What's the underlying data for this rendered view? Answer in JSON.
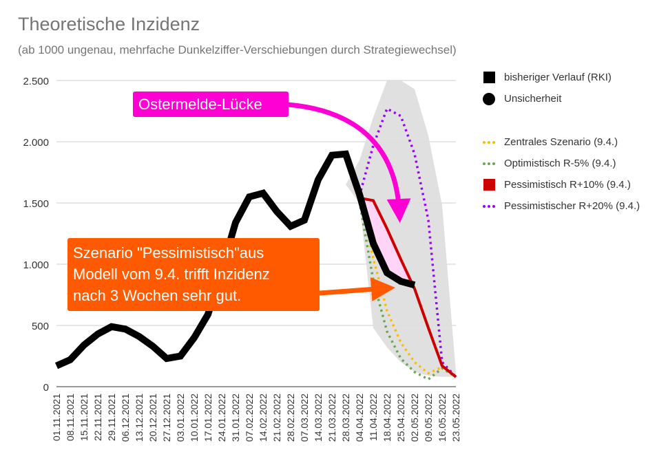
{
  "title": "Theoretische Inzidenz",
  "subtitle": "(ab 1000 ungenau, mehrfache Dunkelziffer-Verschiebungen durch Strategiewechsel)",
  "annotations": {
    "ostermelde": "Ostermelde-Lücke",
    "szenario": "Szenario \"Pessimistisch\"aus\nModell vom 9.4. trifft Inzidenz\nnach 3 Wochen sehr gut."
  },
  "colors": {
    "rki": "#000000",
    "zentral": "#f9bc00",
    "optimistisch": "#6aa84f",
    "pessimistisch10": "#cc0000",
    "pessimistisch20": "#9900ff",
    "band": "#dddddd",
    "pink": "#ff00d4",
    "pink_fill": "#ffd4f7",
    "orange": "#ff5a00",
    "grid": "#cccccc",
    "text": "#333333"
  },
  "legend": [
    {
      "label": "bisheriger Verlauf (RKI)",
      "marker": "square",
      "color": "#000000"
    },
    {
      "label": "Unsicherheit",
      "marker": "circle",
      "color": "#000000"
    },
    {
      "label": "",
      "marker": "none",
      "color": ""
    },
    {
      "label": "Zentrales Szenario (9.4.)",
      "marker": "dotted",
      "color": "#f9bc00"
    },
    {
      "label": "Optimistisch R-5% (9.4.)",
      "marker": "dotted",
      "color": "#6aa84f"
    },
    {
      "label": "Pessimistisch R+10% (9.4.)",
      "marker": "square",
      "color": "#cc0000"
    },
    {
      "label": "Pessimistischer R+20% (9.4.)",
      "marker": "dotted",
      "color": "#9900ff"
    }
  ],
  "chart_data": {
    "type": "line",
    "title": "Theoretische Inzidenz",
    "subtitle": "(ab 1000 ungenau, mehrfache Dunkelziffer-Verschiebungen durch Strategiewechsel)",
    "ylim": [
      0,
      2500
    ],
    "yticks": [
      0,
      500,
      1000,
      1500,
      2000,
      2500
    ],
    "ytick_labels": [
      "0",
      "500",
      "1.000",
      "1.500",
      "2.000",
      "2.500"
    ],
    "grid": true,
    "legend_position": "right",
    "categories": [
      "01.11.2021",
      "08.11.2021",
      "15.11.2021",
      "22.11.2021",
      "29.11.2021",
      "06.12.2021",
      "13.12.2021",
      "20.12.2021",
      "27.12.2021",
      "03.01.2022",
      "10.01.2022",
      "17.01.2022",
      "24.01.2022",
      "31.01.2022",
      "07.02.2022",
      "14.02.2022",
      "21.02.2022",
      "28.02.2022",
      "07.03.2022",
      "14.03.2022",
      "21.03.2022",
      "28.03.2022",
      "04.04.2022",
      "11.04.2022",
      "18.04.2022",
      "25.04.2022",
      "02.05.2022",
      "09.05.2022",
      "16.05.2022",
      "23.05.2022"
    ],
    "series": [
      {
        "name": "bisheriger Verlauf (RKI)",
        "style": "solid-thick",
        "values": [
          170,
          220,
          340,
          430,
          490,
          470,
          410,
          330,
          230,
          250,
          400,
          590,
          950,
          1340,
          1550,
          1580,
          1430,
          1310,
          1360,
          1690,
          1890,
          1900,
          1570,
          1170,
          930,
          860,
          830,
          null,
          null,
          null
        ]
      },
      {
        "name": "Unsicherheit",
        "style": "band",
        "upper": [
          null,
          null,
          null,
          null,
          null,
          null,
          null,
          null,
          null,
          null,
          null,
          null,
          null,
          null,
          null,
          null,
          null,
          null,
          null,
          null,
          null,
          1650,
          1850,
          2200,
          2500,
          2500,
          2430,
          2050,
          1480,
          120
        ],
        "lower": [
          null,
          null,
          null,
          null,
          null,
          null,
          null,
          null,
          null,
          null,
          null,
          null,
          null,
          null,
          null,
          null,
          null,
          null,
          null,
          null,
          null,
          1650,
          1500,
          480,
          320,
          200,
          120,
          90,
          80,
          80
        ]
      },
      {
        "name": "Zentrales Szenario (9.4.)",
        "style": "dotted",
        "values": [
          null,
          null,
          null,
          null,
          null,
          null,
          null,
          null,
          null,
          null,
          null,
          null,
          null,
          null,
          null,
          null,
          null,
          null,
          null,
          null,
          null,
          null,
          1550,
          1050,
          620,
          360,
          200,
          110,
          160,
          80
        ]
      },
      {
        "name": "Optimistisch R-5% (9.4.)",
        "style": "dotted",
        "values": [
          null,
          null,
          null,
          null,
          null,
          null,
          null,
          null,
          null,
          null,
          null,
          null,
          null,
          null,
          null,
          null,
          null,
          null,
          null,
          null,
          null,
          null,
          1510,
          870,
          450,
          230,
          120,
          60,
          150,
          80
        ]
      },
      {
        "name": "Pessimistisch R+10% (9.4.)",
        "style": "solid",
        "values": [
          null,
          null,
          null,
          null,
          null,
          null,
          null,
          null,
          null,
          null,
          null,
          null,
          null,
          null,
          null,
          null,
          null,
          null,
          null,
          null,
          null,
          null,
          1540,
          1520,
          1290,
          1040,
          800,
          480,
          170,
          80
        ]
      },
      {
        "name": "Pessimistischer R+20% (9.4.)",
        "style": "dotted",
        "values": [
          null,
          null,
          null,
          null,
          null,
          null,
          null,
          null,
          null,
          null,
          null,
          null,
          null,
          null,
          null,
          null,
          null,
          null,
          null,
          null,
          null,
          null,
          1560,
          1970,
          2270,
          2210,
          1900,
          1360,
          200,
          80
        ]
      }
    ]
  }
}
